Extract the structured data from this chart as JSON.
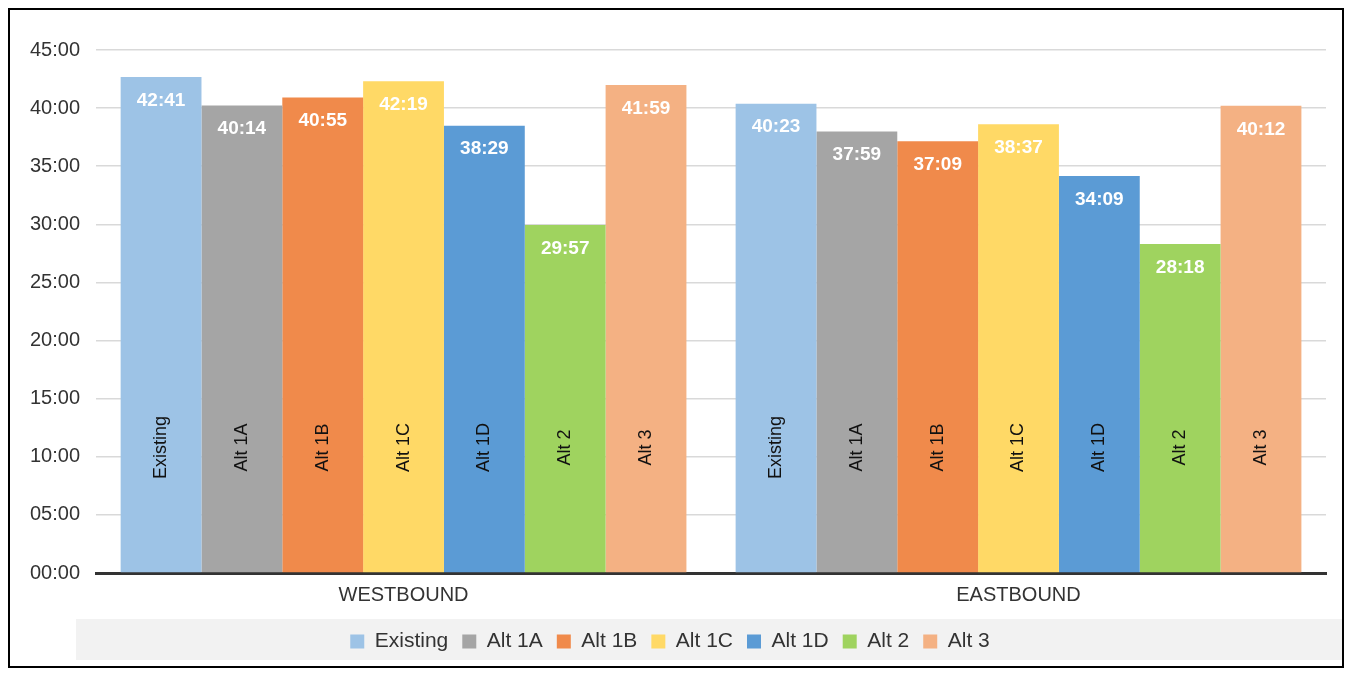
{
  "chart_data": {
    "type": "bar",
    "categories": [
      "WESTBOUND",
      "EASTBOUND"
    ],
    "series": [
      {
        "name": "Existing",
        "color": "#9dc3e6",
        "values": [
          42.6833,
          40.3833
        ],
        "value_labels": [
          "42:41",
          "40:23"
        ]
      },
      {
        "name": "Alt 1A",
        "color": "#a5a5a5",
        "values": [
          40.2333,
          37.9833
        ],
        "value_labels": [
          "40:14",
          "37:59"
        ]
      },
      {
        "name": "Alt 1B",
        "color": "#f08a4b",
        "values": [
          40.9167,
          37.15
        ],
        "value_labels": [
          "40:55",
          "37:09"
        ]
      },
      {
        "name": "Alt 1C",
        "color": "#ffd966",
        "values": [
          42.3167,
          38.6167
        ],
        "value_labels": [
          "42:19",
          "38:37"
        ]
      },
      {
        "name": "Alt 1D",
        "color": "#5b9bd5",
        "values": [
          38.4833,
          34.15
        ],
        "value_labels": [
          "38:29",
          "34:09"
        ]
      },
      {
        "name": "Alt 2",
        "color": "#9fd35f",
        "values": [
          29.95,
          28.3
        ],
        "value_labels": [
          "29:57",
          "28:18"
        ]
      },
      {
        "name": "Alt 3",
        "color": "#f4b183",
        "values": [
          41.9833,
          40.2
        ],
        "value_labels": [
          "41:59",
          "40:12"
        ]
      }
    ],
    "ylim": [
      0,
      45
    ],
    "yticks": [
      {
        "value": 0,
        "label": "00:00"
      },
      {
        "value": 5,
        "label": "05:00"
      },
      {
        "value": 10,
        "label": "10:00"
      },
      {
        "value": 15,
        "label": "15:00"
      },
      {
        "value": 20,
        "label": "20:00"
      },
      {
        "value": 25,
        "label": "25:00"
      },
      {
        "value": 30,
        "label": "30:00"
      },
      {
        "value": 35,
        "label": "35:00"
      },
      {
        "value": 40,
        "label": "40:00"
      },
      {
        "value": 45,
        "label": "45:00"
      }
    ],
    "grid": "y",
    "legend": "bottom"
  }
}
